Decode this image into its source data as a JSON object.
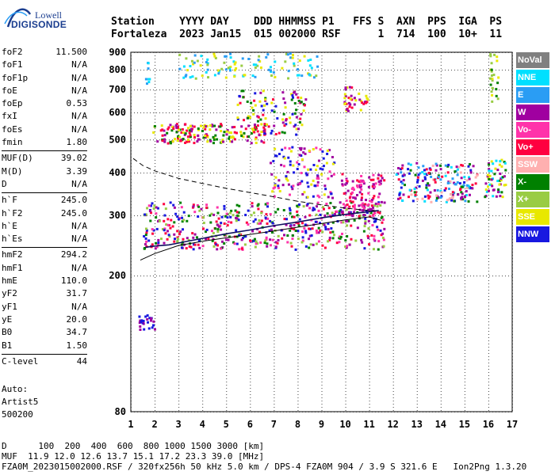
{
  "logo": {
    "line1": "Lowell",
    "line2": "DIGISONDE"
  },
  "header": {
    "line1": "Station    YYYY DAY    DDD HHMMSS P1   FFS S  AXN  PPS  IGA  PS",
    "line2": "Fortaleza  2023 Jan15  015 002000 RSF      1  714  100  10+  11"
  },
  "params": {
    "group1": [
      {
        "k": "foF2",
        "v": "11.500"
      },
      {
        "k": "foF1",
        "v": "N/A"
      },
      {
        "k": "foF1p",
        "v": "N/A"
      },
      {
        "k": "foE",
        "v": "N/A"
      },
      {
        "k": "foEp",
        "v": "0.53"
      },
      {
        "k": "fxI",
        "v": "N/A"
      },
      {
        "k": "foEs",
        "v": "N/A"
      },
      {
        "k": "fmin",
        "v": "1.80"
      }
    ],
    "group2": [
      {
        "k": "MUF(D)",
        "v": "39.02"
      },
      {
        "k": "M(D)",
        "v": "3.39"
      },
      {
        "k": "D",
        "v": "N/A"
      }
    ],
    "group3": [
      {
        "k": "h`F",
        "v": "245.0"
      },
      {
        "k": "h`F2",
        "v": "245.0"
      },
      {
        "k": "h`E",
        "v": "N/A"
      },
      {
        "k": "h`Es",
        "v": "N/A"
      }
    ],
    "group4": [
      {
        "k": "hmF2",
        "v": "294.2"
      },
      {
        "k": "hmF1",
        "v": "N/A"
      },
      {
        "k": "hmE",
        "v": "110.0"
      },
      {
        "k": "yF2",
        "v": "31.7"
      },
      {
        "k": "yF1",
        "v": "N/A"
      },
      {
        "k": "yE",
        "v": "20.0"
      },
      {
        "k": "B0",
        "v": "34.7"
      },
      {
        "k": "B1",
        "v": "1.50"
      }
    ],
    "group5": [
      {
        "k": "C-level",
        "v": "44"
      }
    ]
  },
  "auto": {
    "l1": "Auto:",
    "l2": "Artist5",
    "l3": "500200"
  },
  "legend": [
    {
      "label": "NoVal",
      "color": "#808080"
    },
    {
      "label": "NNE",
      "color": "#00e0ff"
    },
    {
      "label": "E",
      "color": "#2a9df4"
    },
    {
      "label": "W",
      "color": "#a000a0"
    },
    {
      "label": "Vo-",
      "color": "#ff33aa"
    },
    {
      "label": "Vo+",
      "color": "#ff0040"
    },
    {
      "label": "SSW",
      "color": "#ffb0b0"
    },
    {
      "label": "X-",
      "color": "#008000"
    },
    {
      "label": "X+",
      "color": "#99cc44"
    },
    {
      "label": "SSE",
      "color": "#e8e800"
    },
    {
      "label": "NNW",
      "color": "#1818e0"
    }
  ],
  "footer": {
    "l1": "D      100  200  400  600  800 1000 1500 3000 [km]",
    "l2": "MUF  11.9 12.0 12.6 13.7 15.1 17.2 23.3 39.0 [MHz]",
    "l3": "FZA0M_2023015002000.RSF / 320fx256h 50 kHz 5.0 km / DPS-4 FZA0M 904 / 3.9 S 321.6 E   Ion2Png 1.3.20"
  },
  "chart_data": {
    "type": "scatter",
    "xlim": [
      1,
      17
    ],
    "ylim": [
      80,
      900
    ],
    "x_ticks": [
      1,
      2,
      3,
      4,
      5,
      6,
      7,
      8,
      9,
      10,
      11,
      12,
      13,
      14,
      15,
      16,
      17
    ],
    "y_ticks": [
      80,
      200,
      300,
      400,
      500,
      600,
      700,
      800,
      900
    ],
    "y_scale": "log",
    "grid": true,
    "legend_position": "right",
    "traces": [
      {
        "name": "profile",
        "style": "solid",
        "x": [
          1.4,
          2,
          3,
          4,
          5,
          6,
          7,
          8,
          9,
          10,
          11,
          11.5
        ],
        "y": [
          222,
          232,
          245,
          252,
          258,
          264,
          270,
          277,
          284,
          291,
          297,
          290
        ]
      },
      {
        "name": "trace",
        "style": "solid",
        "x": [
          1.6,
          2,
          2.6,
          3,
          3.5,
          4,
          5,
          6,
          7,
          8,
          9,
          10,
          11.4
        ],
        "y": [
          242,
          244,
          246,
          249,
          253,
          257,
          265,
          272,
          280,
          287,
          295,
          302,
          310
        ]
      },
      {
        "name": "dashed",
        "style": "dashed",
        "x": [
          1.1,
          1.5,
          2,
          3,
          4,
          5,
          6,
          7,
          8,
          9,
          10,
          11,
          11.5
        ],
        "y": [
          440,
          420,
          405,
          385,
          372,
          360,
          350,
          340,
          330,
          322,
          315,
          310,
          308
        ]
      }
    ],
    "clusters": [
      {
        "x": [
          1.5,
          11.6
        ],
        "y": [
          240,
          330
        ],
        "colors": [
          "#ff0040",
          "#ff33aa",
          "#a000a0",
          "#008000",
          "#1818e0",
          "#99cc44"
        ],
        "n": 520
      },
      {
        "x": [
          9.8,
          11.6
        ],
        "y": [
          300,
          400
        ],
        "colors": [
          "#ff0040",
          "#a000a0",
          "#ff33aa"
        ],
        "n": 120
      },
      {
        "x": [
          1.9,
          6.6
        ],
        "y": [
          490,
          560
        ],
        "colors": [
          "#e8e800",
          "#ff0040",
          "#a000a0",
          "#008000"
        ],
        "n": 180
      },
      {
        "x": [
          5.4,
          8.3
        ],
        "y": [
          520,
          700
        ],
        "colors": [
          "#a000a0",
          "#e8e800",
          "#ff0040",
          "#008000",
          "#1818e0"
        ],
        "n": 110
      },
      {
        "x": [
          6.8,
          9.5
        ],
        "y": [
          340,
          480
        ],
        "colors": [
          "#1818e0",
          "#a000a0",
          "#ff33aa",
          "#e8e800"
        ],
        "n": 120
      },
      {
        "x": [
          3,
          8.9
        ],
        "y": [
          760,
          900
        ],
        "colors": [
          "#e8e800",
          "#2a9df4",
          "#00e0ff",
          "#99cc44"
        ],
        "n": 110
      },
      {
        "x": [
          9.9,
          10.9
        ],
        "y": [
          610,
          720
        ],
        "colors": [
          "#a000a0",
          "#ff0040",
          "#e8e800"
        ],
        "n": 40
      },
      {
        "x": [
          12.1,
          15.5
        ],
        "y": [
          330,
          430
        ],
        "colors": [
          "#2a9df4",
          "#00e0ff",
          "#ffb0b0",
          "#ff0040",
          "#1818e0",
          "#a000a0",
          "#008000"
        ],
        "n": 200
      },
      {
        "x": [
          15.8,
          16.7
        ],
        "y": [
          340,
          440
        ],
        "colors": [
          "#008000",
          "#e8e800",
          "#a000a0",
          "#00e0ff"
        ],
        "n": 60
      },
      {
        "x": [
          16,
          16.4
        ],
        "y": [
          650,
          900
        ],
        "colors": [
          "#008000",
          "#99cc44",
          "#e8e800"
        ],
        "n": 25
      },
      {
        "x": [
          1.3,
          2
        ],
        "y": [
          140,
          155
        ],
        "colors": [
          "#1818e0",
          "#a000a0"
        ],
        "n": 25
      },
      {
        "x": [
          1.5,
          1.8
        ],
        "y": [
          720,
          860
        ],
        "colors": [
          "#2a9df4",
          "#00e0ff"
        ],
        "n": 8
      }
    ]
  }
}
